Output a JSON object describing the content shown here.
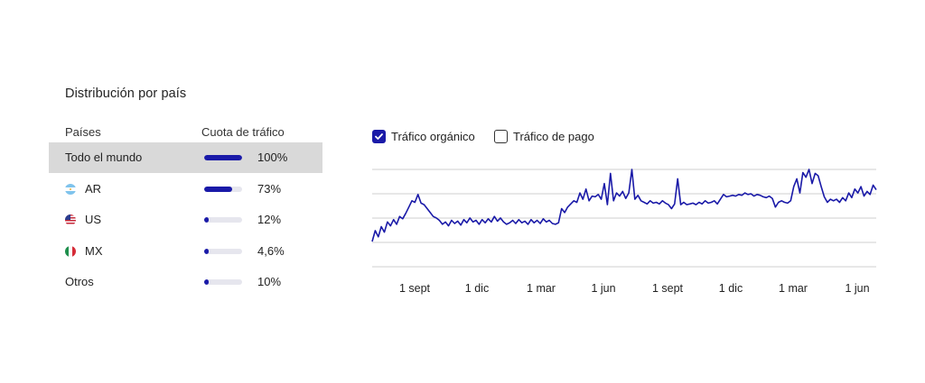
{
  "title": "Distribución por país",
  "table": {
    "col_countries": "Países",
    "col_share": "Cuota de tráfico",
    "rows": [
      {
        "label": "Todo el mundo",
        "percent": "100%",
        "share": 1.0,
        "highlight": true
      },
      {
        "label": "AR",
        "percent": "73%",
        "share": 0.73,
        "flag": "flag-argentina"
      },
      {
        "label": "US",
        "percent": "12%",
        "share": 0.12,
        "flag": "flag-united-states"
      },
      {
        "label": "MX",
        "percent": "4,6%",
        "share": 0.046,
        "flag": "flag-mexico"
      },
      {
        "label": "Otros",
        "percent": "10%",
        "share": 0.1
      }
    ]
  },
  "legend": {
    "organic_label": "Tráfico orgánico",
    "organic_checked": true,
    "paid_label": "Tráfico de pago",
    "paid_checked": false
  },
  "colors": {
    "accent": "#1a1aa8",
    "highlight_row": "#d9d9d9",
    "grid": "#cfcfcf"
  },
  "chart_data": {
    "type": "line",
    "series": [
      {
        "values": [
          0.08,
          0.22,
          0.14,
          0.27,
          0.2,
          0.33,
          0.28,
          0.36,
          0.3,
          0.4,
          0.37,
          0.44,
          0.52,
          0.6,
          0.58,
          0.68,
          0.57,
          0.55,
          0.5,
          0.45,
          0.4,
          0.38,
          0.35,
          0.3,
          0.33,
          0.28,
          0.35,
          0.31,
          0.34,
          0.29,
          0.36,
          0.32,
          0.38,
          0.33,
          0.35,
          0.3,
          0.36,
          0.32,
          0.37,
          0.33,
          0.4,
          0.34,
          0.38,
          0.33,
          0.3,
          0.32,
          0.35,
          0.31,
          0.36,
          0.32,
          0.34,
          0.3,
          0.36,
          0.32,
          0.35,
          0.31,
          0.37,
          0.33,
          0.35,
          0.31,
          0.3,
          0.32,
          0.5,
          0.45,
          0.52,
          0.56,
          0.6,
          0.58,
          0.7,
          0.62,
          0.75,
          0.6,
          0.66,
          0.65,
          0.68,
          0.62,
          0.82,
          0.55,
          0.95,
          0.6,
          0.7,
          0.66,
          0.72,
          0.63,
          0.7,
          1.0,
          0.62,
          0.67,
          0.6,
          0.58,
          0.56,
          0.6,
          0.57,
          0.58,
          0.56,
          0.6,
          0.57,
          0.55,
          0.5,
          0.56,
          0.88,
          0.55,
          0.58,
          0.55,
          0.56,
          0.57,
          0.55,
          0.58,
          0.56,
          0.6,
          0.57,
          0.58,
          0.6,
          0.56,
          0.62,
          0.68,
          0.65,
          0.66,
          0.67,
          0.66,
          0.68,
          0.67,
          0.7,
          0.68,
          0.69,
          0.66,
          0.68,
          0.67,
          0.65,
          0.64,
          0.66,
          0.63,
          0.52,
          0.58,
          0.6,
          0.58,
          0.57,
          0.6,
          0.78,
          0.88,
          0.7,
          0.96,
          0.9,
          1.0,
          0.82,
          0.95,
          0.92,
          0.78,
          0.65,
          0.58,
          0.62,
          0.6,
          0.62,
          0.58,
          0.64,
          0.6,
          0.7,
          0.64,
          0.75,
          0.7,
          0.78,
          0.66,
          0.72,
          0.68,
          0.8,
          0.74
        ]
      }
    ],
    "x_tick_labels": [
      "1 sept",
      "1 dic",
      "1 mar",
      "1 jun",
      "1 sept",
      "1 dic",
      "1 mar",
      "1 jun"
    ],
    "gridlines": 5,
    "grid": true,
    "legend_position": "top-left"
  }
}
